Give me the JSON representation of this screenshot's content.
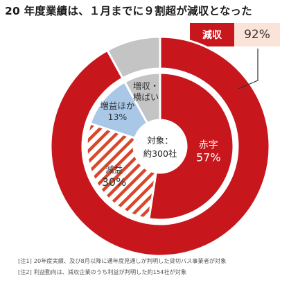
{
  "title": "20 年度業績は、１月までに９割超が減収となった",
  "badge": {
    "label": "減収",
    "value": "92%"
  },
  "center": {
    "line1": "対象：",
    "line2": "約300社"
  },
  "notes": [
    {
      "tag": "[注1]",
      "text": "20年度実績、及び8月以降に通年度見通しが判明した貸切バス事業者が対象"
    },
    {
      "tag": "[注2]",
      "text": "利益動向は、減収企業のうち利益が判明した約154社が対象"
    }
  ],
  "chart_data": {
    "type": "pie",
    "title": "20 年度業績は、１月までに９割超が減収となった",
    "outer_ring": [
      {
        "label": "減収",
        "value": 92,
        "display": "92%",
        "color": "#c8161d"
      },
      {
        "label": "増収・横ばい",
        "value": 8,
        "display": "",
        "color": "#c4c4c4"
      }
    ],
    "slices": [
      {
        "label": "赤字",
        "value": 57,
        "display": "57%",
        "color": "#c8161d",
        "pattern": "solid"
      },
      {
        "label": "減益",
        "value": 30,
        "display": "30%",
        "color": "#d9472b",
        "pattern": "stripes"
      },
      {
        "label": "増益ほか",
        "value": 13,
        "display": "13%",
        "color": "#a9c8e8",
        "pattern": "solid"
      },
      {
        "label": "増収・横ばい",
        "value": 8,
        "display": "",
        "color": "#c4c4c4",
        "pattern": "solid",
        "lines": [
          "増収・",
          "横ばい"
        ]
      }
    ]
  }
}
